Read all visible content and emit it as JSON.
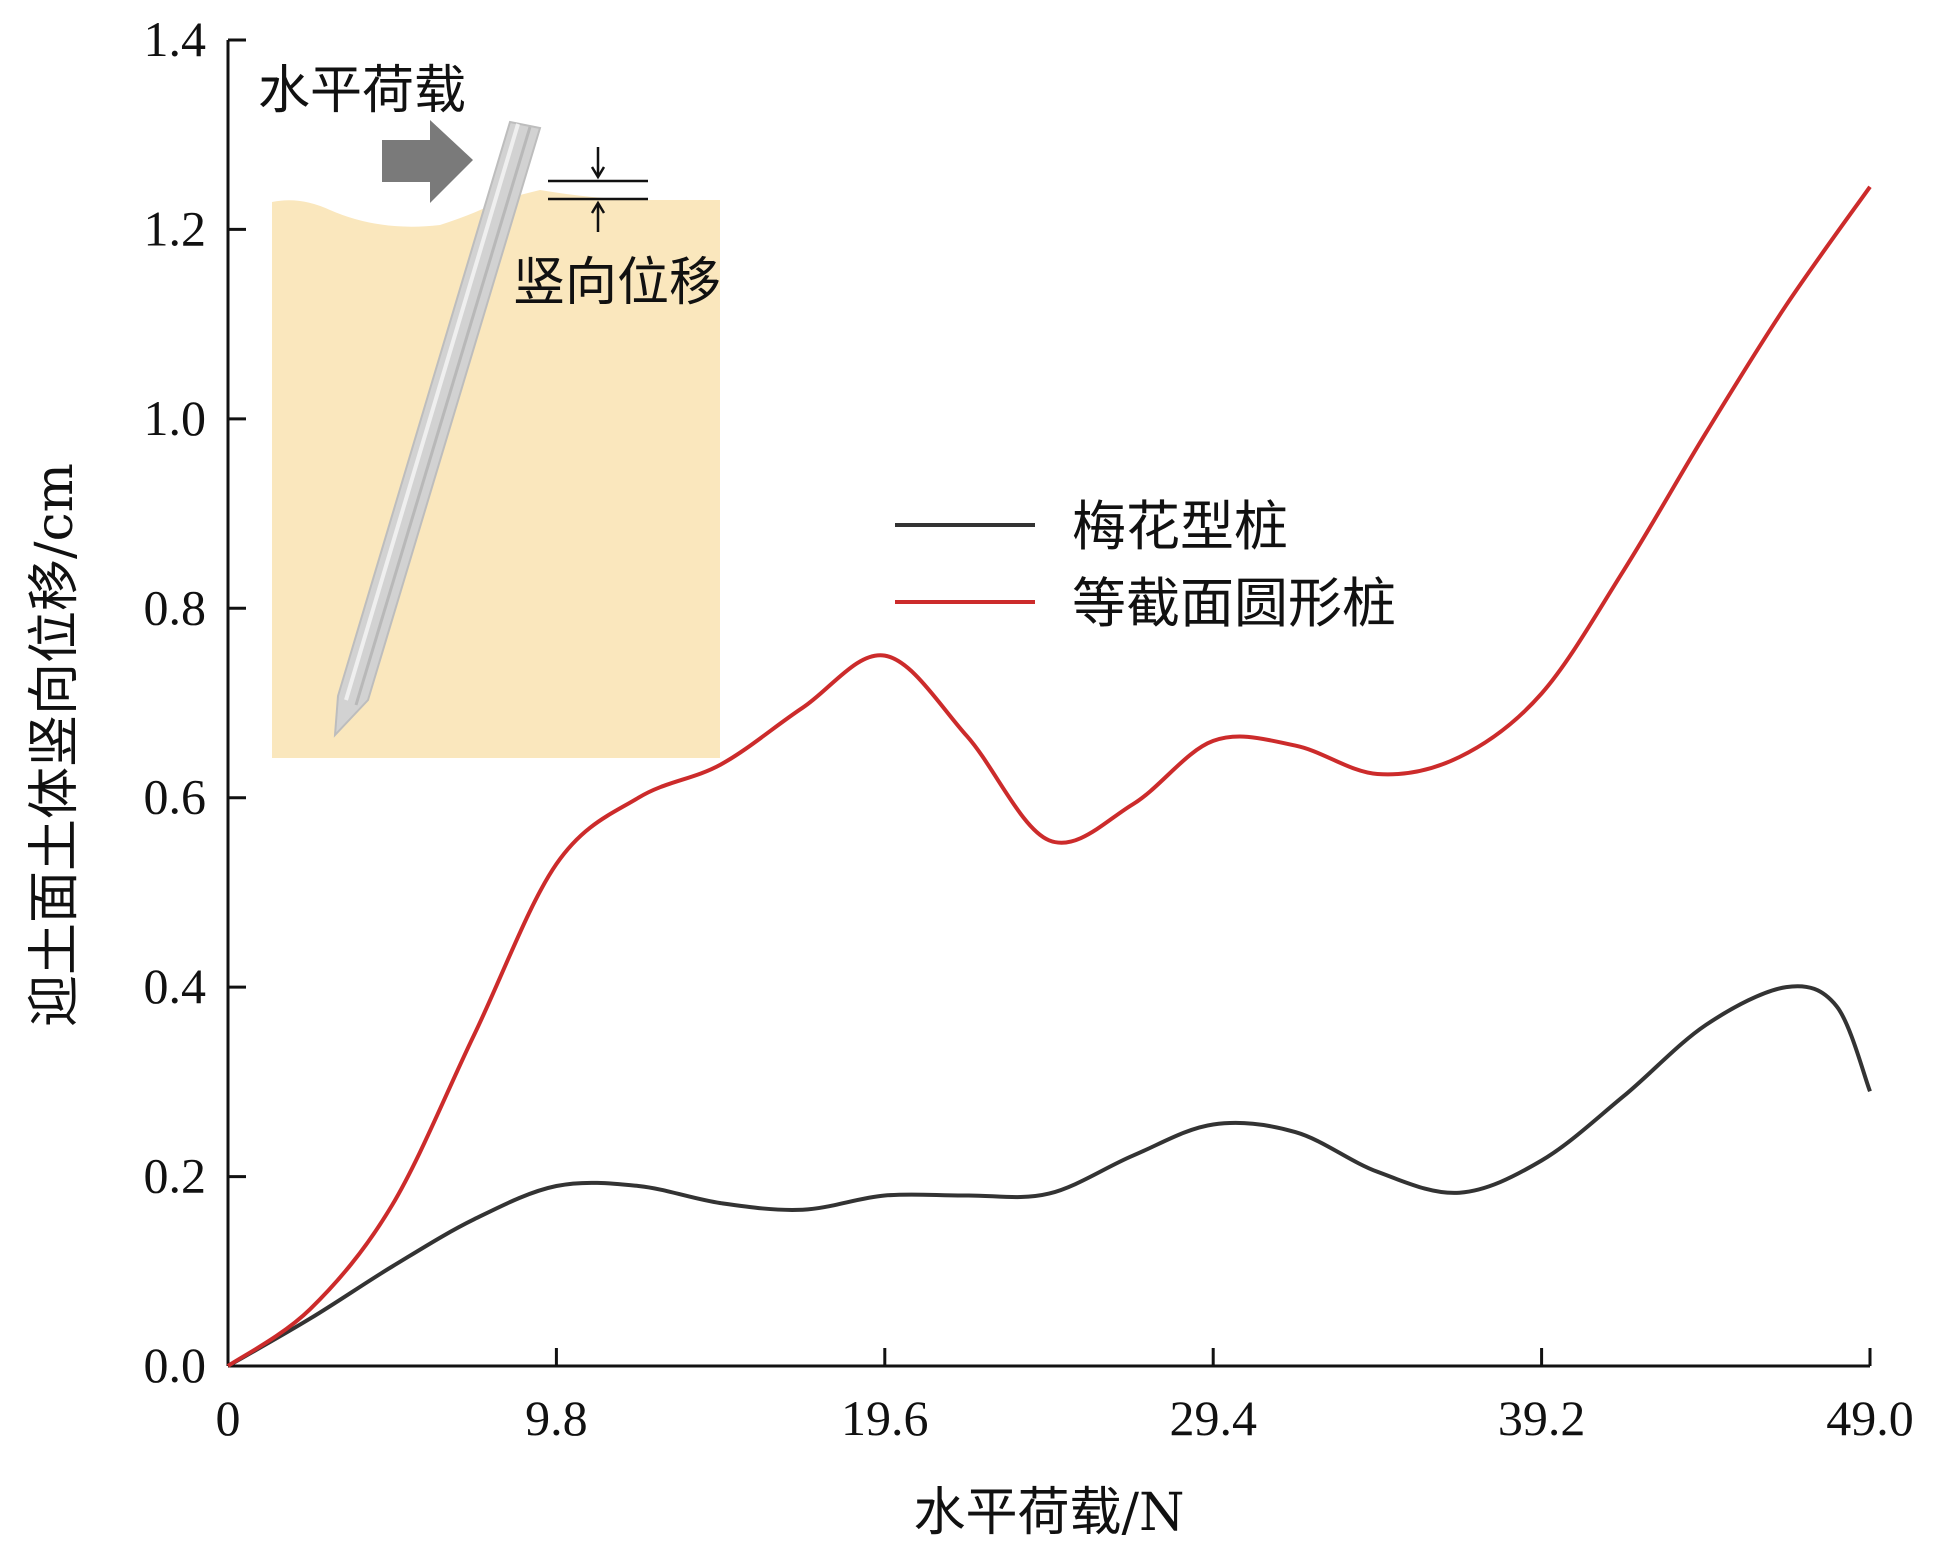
{
  "chart_data": {
    "type": "line",
    "xlabel": "水平荷载/N",
    "ylabel": "迎土面土体竖向位移/cm",
    "xlim": [
      0,
      49.0
    ],
    "ylim": [
      0,
      1.4
    ],
    "x_ticks": [
      "0",
      "9.8",
      "19.6",
      "29.4",
      "39.2",
      "49.0"
    ],
    "x_tick_values": [
      0,
      9.8,
      19.6,
      29.4,
      39.2,
      49.0
    ],
    "y_ticks": [
      "0.0",
      "0.2",
      "0.4",
      "0.6",
      "0.8",
      "1.0",
      "1.2",
      "1.4"
    ],
    "y_tick_values": [
      0,
      0.2,
      0.4,
      0.6,
      0.8,
      1.0,
      1.2,
      1.4
    ],
    "grid": false,
    "legend_position": "center-right",
    "series": [
      {
        "name": "梅花型桩",
        "color": "#333333",
        "points": [
          [
            0,
            0
          ],
          [
            2.45,
            0.05
          ],
          [
            4.9,
            0.105
          ],
          [
            7.35,
            0.155
          ],
          [
            9.8,
            0.19
          ],
          [
            12.25,
            0.19
          ],
          [
            14.7,
            0.172
          ],
          [
            17.15,
            0.165
          ],
          [
            19.6,
            0.18
          ],
          [
            22.05,
            0.18
          ],
          [
            24.5,
            0.182
          ],
          [
            27.0,
            0.222
          ],
          [
            29.4,
            0.255
          ],
          [
            31.85,
            0.247
          ],
          [
            34.3,
            0.205
          ],
          [
            36.75,
            0.183
          ],
          [
            39.2,
            0.217
          ],
          [
            41.65,
            0.285
          ],
          [
            44.1,
            0.36
          ],
          [
            46.5,
            0.4
          ],
          [
            48.0,
            0.38
          ],
          [
            49.0,
            0.29
          ]
        ]
      },
      {
        "name": "等截面圆形桩",
        "color": "#cc2b2b",
        "points": [
          [
            0,
            0
          ],
          [
            2.45,
            0.06
          ],
          [
            4.9,
            0.17
          ],
          [
            7.35,
            0.35
          ],
          [
            9.8,
            0.53
          ],
          [
            12.25,
            0.6
          ],
          [
            14.7,
            0.635
          ],
          [
            17.15,
            0.695
          ],
          [
            19.6,
            0.75
          ],
          [
            22.05,
            0.665
          ],
          [
            24.5,
            0.555
          ],
          [
            27.0,
            0.593
          ],
          [
            29.4,
            0.66
          ],
          [
            31.85,
            0.655
          ],
          [
            34.3,
            0.625
          ],
          [
            36.75,
            0.643
          ],
          [
            39.2,
            0.71
          ],
          [
            41.65,
            0.84
          ],
          [
            44.1,
            0.985
          ],
          [
            46.5,
            1.12
          ],
          [
            49.0,
            1.245
          ]
        ]
      }
    ],
    "inset": {
      "load_label": "水平荷载",
      "displacement_label": "竖向位移",
      "colors": {
        "soil": "#fae7bd",
        "pile": "#cfcfcf",
        "arrow": "#7a7a7a"
      }
    }
  }
}
